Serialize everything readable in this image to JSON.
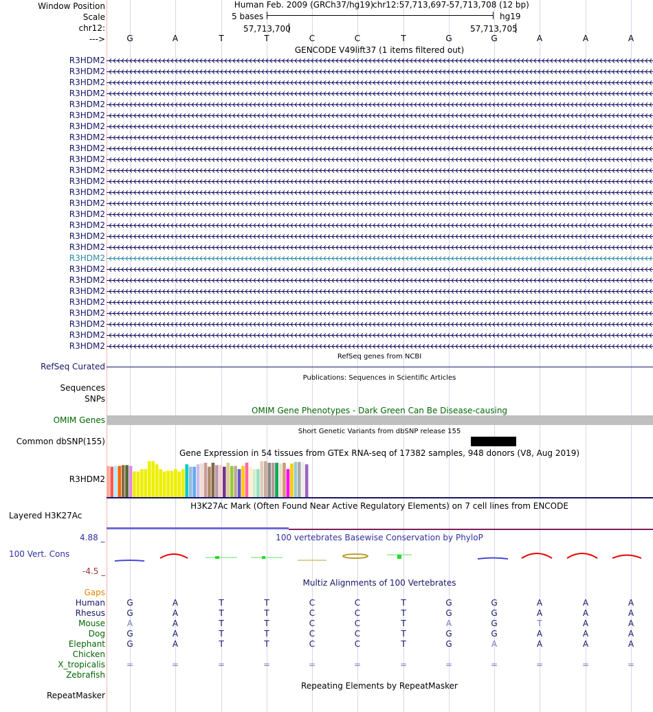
{
  "labels": {
    "window_position": "Window Position",
    "scale": "Scale",
    "chrom": "chr12:",
    "strand": "--->",
    "gene_name": "R3HDM2",
    "refseq": "RefSeq Curated",
    "sequences": "Sequences",
    "snps": "SNPs",
    "omim": "OMIM Genes",
    "dbsnp": "Common dbSNP(155)",
    "gtex_gene": "R3HDM2",
    "h3k27ac": "Layered H3K27Ac",
    "cons_max": "4.88 _",
    "cons": "100 Vert. Cons",
    "cons_min": "-4.5 _",
    "gaps": "Gaps",
    "species": [
      "Human",
      "Rhesus",
      "Mouse",
      "Dog",
      "Elephant",
      "Chicken",
      "X_tropicalis",
      "Zebrafish"
    ],
    "repeatmasker": "RepeatMasker"
  },
  "header": {
    "assembly": "Human Feb. 2009 (GRCh37/hg19)",
    "position": "chr12:57,713,697-57,713,708 (12 bp)",
    "scale_text": "5 bases",
    "db": "hg19",
    "pos1": "57,713,700",
    "pos2": "57,713,705"
  },
  "bases": [
    "G",
    "A",
    "T",
    "T",
    "C",
    "C",
    "T",
    "G",
    "G",
    "A",
    "A",
    "A"
  ],
  "tracks": {
    "gencode_title": "GENCODE V49lift37 (1 items filtered out)",
    "gencode_count": 27,
    "highlight_index": 18,
    "refseq_title": "RefSeq genes from NCBI",
    "pubs_title": "Publications: Sequences in Scientific Articles",
    "omim_title": "OMIM Gene Phenotypes - Dark Green Can Be Disease-causing",
    "dbsnp_title": "Short Genetic Variants from dbSNP release 155",
    "gtex_title": "Gene Expression in 54 tissues from GTEx RNA-seq of 17382 samples, 948 donors (V8, Aug 2019)",
    "h3k27ac_title": "H3K27Ac Mark (Often Found Near Active Regulatory Elements) on 7 cell lines from ENCODE",
    "cons_title": "100 vertebrates Basewise Conservation by PhyloP",
    "multiz_title": "Multiz Alignments of 100 Vertebrates",
    "rmsk_title": "Repeating Elements by RepeatMasker"
  },
  "gtex": {
    "values": [
      0.8,
      0.78,
      0.8,
      0.8,
      0.82,
      0.82,
      0.8,
      0.66,
      0.66,
      0.72,
      0.72,
      0.92,
      0.92,
      0.84,
      0.72,
      0.66,
      0.68,
      0.68,
      0.72,
      0.66,
      0.72,
      0.84,
      0.78,
      0.78,
      0.84,
      0.86,
      0.88,
      0.78,
      0.88,
      0.82,
      0.82,
      0.78,
      0.88,
      0.8,
      0.8,
      0.72,
      0.8,
      0.88,
      0.78,
      0.72,
      0.72,
      0.92,
      0.92,
      0.88,
      0.88,
      0.88,
      0.86,
      0.88,
      0.72,
      0.86,
      0.9,
      0.9,
      0.9,
      0.84
    ],
    "colors": [
      "#FFAA99",
      "#FF5555",
      "#AAEEFF",
      "#FF6600",
      "#8A6A4A",
      "#556B2F",
      "#DD88DD",
      "#EEEE00",
      "#EEEE00",
      "#EEEE00",
      "#EEEE00",
      "#EEEE00",
      "#EEEE00",
      "#EEEE00",
      "#EEEE00",
      "#EEEE00",
      "#EEEE00",
      "#EEEE00",
      "#EEEE00",
      "#EEEE00",
      "#EEEE00",
      "#00CCCC",
      "#99BBDD",
      "#66AAEE",
      "#CCBBEE",
      "#EEDDCC",
      "#CC9999",
      "#AA8866",
      "#886644",
      "#BB99AA",
      "#EECCCC",
      "#773388",
      "#DDCC99",
      "#99CC33",
      "#BBAA99",
      "#6655CC",
      "#FFCC00",
      "#FF66AA",
      "#FFEECC",
      "#CCEECC",
      "#99DDBB",
      "#DDCCBB",
      "#CCAA99",
      "#888888",
      "#BB9999",
      "#00AA55",
      "#EEDDCC",
      "#CC9977",
      "#FF00EE",
      "#FFCC00",
      "#99CCCC",
      "#AAAAAA",
      "#EEEEEE",
      "#9966BB"
    ]
  },
  "multiz": {
    "rows": [
      {
        "bases": [
          "G",
          "A",
          "T",
          "T",
          "C",
          "C",
          "T",
          "G",
          "G",
          "A",
          "A",
          "A"
        ],
        "faint": []
      },
      {
        "bases": [
          "G",
          "A",
          "T",
          "T",
          "C",
          "C",
          "T",
          "G",
          "G",
          "A",
          "A",
          "A"
        ],
        "faint": []
      },
      {
        "bases": [
          "A",
          "A",
          "T",
          "T",
          "C",
          "C",
          "T",
          "A",
          "G",
          "T",
          "A",
          "A"
        ],
        "faint": [
          0,
          7,
          9
        ]
      },
      {
        "bases": [
          "G",
          "A",
          "T",
          "T",
          "C",
          "C",
          "T",
          "G",
          "G",
          "A",
          "A",
          "A"
        ],
        "faint": []
      },
      {
        "bases": [
          "G",
          "A",
          "T",
          "T",
          "C",
          "C",
          "T",
          "G",
          "A",
          "A",
          "A",
          "A"
        ],
        "faint": [
          8
        ]
      },
      {
        "bases": [],
        "faint": []
      },
      {
        "bases": [
          "=",
          "=",
          "=",
          "=",
          "=",
          "=",
          "=",
          "=",
          "=",
          "=",
          "=",
          "="
        ],
        "faint": []
      },
      {
        "bases": [],
        "faint": []
      }
    ]
  },
  "colors": {
    "navy": "#151566",
    "highlight": "#2a8aa3",
    "omim": "#006600",
    "cons": "#2F2F9F",
    "cons_min": "#9F2F2F",
    "gaps": "#E08800",
    "species_green": "#006600",
    "faint": "#7878b8",
    "gray_bar": "#bfbfbf"
  }
}
